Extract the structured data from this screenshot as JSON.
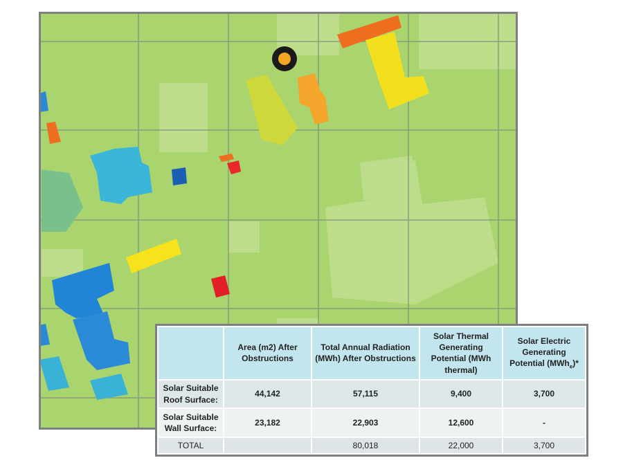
{
  "table": {
    "header": [
      null,
      "Area (m2) After Obstructions",
      "Total Annual Radiation (MWh) After Obstructions",
      "Solar Thermal Generating Potential (MWh thermal)",
      {
        "text": "Solar Electric Generating Potential  (MWh",
        "subscript": "e",
        "suffix": ")*"
      }
    ],
    "rows": [
      [
        "Solar Suitable Roof Surface:",
        "44,142",
        "57,115",
        "9,400",
        "3,700"
      ],
      [
        "Solar Suitable Wall Surface:",
        "23,182",
        "22,903",
        "12,600",
        "-"
      ],
      [
        "TOTAL",
        null,
        "80,018",
        "22,000",
        "3,700"
      ]
    ]
  }
}
